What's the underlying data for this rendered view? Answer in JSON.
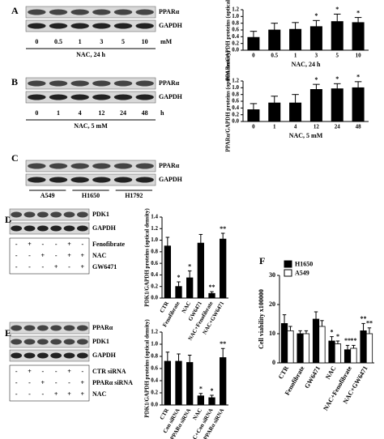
{
  "panels": [
    "A",
    "B",
    "C",
    "D",
    "E",
    "F"
  ],
  "blots": [
    {
      "rows": [
        "PPARα",
        "GAPDH"
      ],
      "lanes": [
        "0",
        "0.5",
        "1",
        "3",
        "5",
        "10"
      ],
      "unit": "mM",
      "caption": "NAC, 24 h"
    },
    {
      "rows": [
        "PPARα",
        "GAPDH"
      ],
      "lanes": [
        "0",
        "1",
        "4",
        "12",
        "24",
        "48"
      ],
      "unit": "h",
      "caption": "NAC, 5 mM"
    },
    {
      "rows": [
        "PPARα",
        "GAPDH"
      ],
      "lanes": [
        "A549",
        "H1650",
        "H1792"
      ]
    },
    {
      "rows": [
        "PDK1",
        "GAPDH"
      ],
      "treatments": [
        {
          "label": "Fenofibrate",
          "signs": [
            "-",
            "+",
            "-",
            "-",
            "+",
            "-"
          ]
        },
        {
          "label": "NAC",
          "signs": [
            "-",
            "-",
            "+",
            "-",
            "+",
            "+"
          ]
        },
        {
          "label": "GW6471",
          "signs": [
            "-",
            "-",
            "-",
            "+",
            "-",
            "+"
          ]
        }
      ]
    },
    {
      "rows": [
        "PPARα",
        "PDK1",
        "GAPDH"
      ],
      "treatments": [
        {
          "label": "CTR siRNA",
          "signs": [
            "-",
            "+",
            "-",
            "-",
            "+",
            "-"
          ]
        },
        {
          "label": "PPARα siRNA",
          "signs": [
            "-",
            "-",
            "+",
            "-",
            "-",
            "+"
          ]
        },
        {
          "label": "NAC",
          "signs": [
            "-",
            "-",
            "-",
            "+",
            "+",
            "+"
          ]
        }
      ]
    }
  ],
  "chart_data": [
    {
      "type": "bar",
      "y_label": "PPARα/GAPDH proteins (optical density)",
      "x_label": "NAC, 24 h",
      "categories": [
        "0",
        "0.5",
        "1",
        "3",
        "5",
        "10"
      ],
      "values": [
        0.38,
        0.6,
        0.62,
        0.7,
        0.85,
        0.82
      ],
      "errors": [
        0.18,
        0.2,
        0.2,
        0.18,
        0.22,
        0.15
      ],
      "color": "#000000",
      "ylim": [
        0,
        1.2
      ],
      "yticks": [
        {
          "value": 0,
          "label": "0.0"
        },
        {
          "value": 0.2,
          "label": "0.2"
        },
        {
          "value": 0.4,
          "label": "0.4"
        },
        {
          "value": 0.6,
          "label": "0.6"
        },
        {
          "value": 0.8,
          "label": "0.8"
        },
        {
          "value": 1,
          "label": "1.0"
        },
        {
          "value": 1.2,
          "label": "1.2"
        }
      ],
      "annotations": [
        {
          "text": "*",
          "category": "3"
        },
        {
          "text": "*",
          "category": "5"
        },
        {
          "text": "*",
          "category": "10"
        }
      ]
    },
    {
      "type": "bar",
      "y_label": "PPARα/GAPDH proteins (optical density)",
      "x_label": "NAC, 5 mM",
      "categories": [
        "0",
        "1",
        "4",
        "12",
        "24",
        "48"
      ],
      "values": [
        0.35,
        0.55,
        0.55,
        0.95,
        0.97,
        1.0
      ],
      "errors": [
        0.18,
        0.2,
        0.25,
        0.15,
        0.15,
        0.18
      ],
      "color": "#000000",
      "ylim": [
        0,
        1.2
      ],
      "yticks": [
        {
          "value": 0,
          "label": "0.0"
        },
        {
          "value": 0.2,
          "label": "0.2"
        },
        {
          "value": 0.4,
          "label": "0.4"
        },
        {
          "value": 0.6,
          "label": "0.6"
        },
        {
          "value": 0.8,
          "label": "0.8"
        },
        {
          "value": 1,
          "label": "1.0"
        },
        {
          "value": 1.2,
          "label": "1.2"
        }
      ],
      "annotations": [
        {
          "text": "*",
          "category": "12"
        },
        {
          "text": "*",
          "category": "24"
        },
        {
          "text": "*",
          "category": "48"
        }
      ]
    },
    {
      "type": "bar",
      "y_label": "PDK1/GAPDH proteins (optical density)",
      "categories": [
        "CTR",
        "Fenofibrate",
        "NAC",
        "GW6471",
        "NAC+Fenofibrate",
        "NAC+GW6471"
      ],
      "values": [
        0.9,
        0.2,
        0.35,
        0.95,
        0.08,
        1.02
      ],
      "errors": [
        0.15,
        0.08,
        0.12,
        0.15,
        0.03,
        0.1
      ],
      "color": "#000000",
      "ylim": [
        0,
        1.4
      ],
      "yticks": [
        {
          "value": 0,
          "label": "0.0"
        },
        {
          "value": 0.2,
          "label": "0.2"
        },
        {
          "value": 0.4,
          "label": "0.4"
        },
        {
          "value": 0.6,
          "label": "0.6"
        },
        {
          "value": 0.8,
          "label": "0.8"
        },
        {
          "value": 1,
          "label": "1.0"
        },
        {
          "value": 1.2,
          "label": "1.2"
        },
        {
          "value": 1.4,
          "label": "1.4"
        }
      ],
      "annotations": [
        {
          "text": "*",
          "category": "Fenofibrate"
        },
        {
          "text": "*",
          "category": "NAC"
        },
        {
          "text": "**",
          "category": "NAC+Fenofibrate"
        },
        {
          "text": "**",
          "category": "NAC+GW6471"
        }
      ]
    },
    {
      "type": "bar",
      "y_label": "PDK1/GAPDH proteins (optical density)",
      "categories": [
        "CTR",
        "Con siRNA",
        "PPARα siRNA",
        "NAC",
        "NAC+Con siRNA",
        "NAC+PPARα siRNA"
      ],
      "values": [
        0.72,
        0.72,
        0.7,
        0.15,
        0.12,
        0.78
      ],
      "errors": [
        0.15,
        0.12,
        0.12,
        0.04,
        0.04,
        0.15
      ],
      "color": "#000000",
      "ylim": [
        0,
        1.2
      ],
      "yticks": [
        {
          "value": 0,
          "label": "0.0"
        },
        {
          "value": 0.2,
          "label": "0.2"
        },
        {
          "value": 0.4,
          "label": "0.4"
        },
        {
          "value": 0.6,
          "label": "0.6"
        },
        {
          "value": 0.8,
          "label": "0.8"
        },
        {
          "value": 1,
          "label": "1.0"
        },
        {
          "value": 1.2,
          "label": "1.2"
        }
      ],
      "annotations": [
        {
          "text": "*",
          "category": "NAC"
        },
        {
          "text": "*",
          "category": "NAC+Con siRNA"
        },
        {
          "text": "**",
          "category": "NAC+PPARα siRNA"
        }
      ]
    },
    {
      "type": "bar",
      "y_label": "Cell viability x100000",
      "legend": "upper left",
      "categories": [
        "CTR",
        "Fenofibrate",
        "GW6471",
        "NAC",
        "NAC+Fenofibrate",
        "NAC+GW6471"
      ],
      "series": [
        {
          "name": "H1650",
          "color": "#000000",
          "values": [
            13.5,
            10,
            15,
            7.5,
            4.5,
            11
          ],
          "errors": [
            3,
            1,
            2.5,
            1.5,
            1.5,
            2.5
          ]
        },
        {
          "name": "A549",
          "color": "#ffffff",
          "values": [
            11,
            10,
            12.5,
            6.5,
            5,
            10
          ],
          "errors": [
            1.5,
            1,
            2,
            1,
            1,
            2
          ]
        }
      ],
      "ylim": [
        0,
        30
      ],
      "yticks": [
        0,
        10,
        20,
        30
      ],
      "annotations": [
        {
          "text": "*",
          "category": "NAC",
          "series": "H1650"
        },
        {
          "text": "*",
          "category": "NAC",
          "series": "A549"
        },
        {
          "text": "**",
          "category": "NAC+Fenofibrate",
          "series": "H1650"
        },
        {
          "text": "**",
          "category": "NAC+Fenofibrate",
          "series": "A549"
        },
        {
          "text": "**",
          "category": "NAC+GW6471",
          "series": "H1650"
        },
        {
          "text": "**",
          "category": "NAC+GW6471",
          "series": "A549"
        }
      ]
    }
  ]
}
